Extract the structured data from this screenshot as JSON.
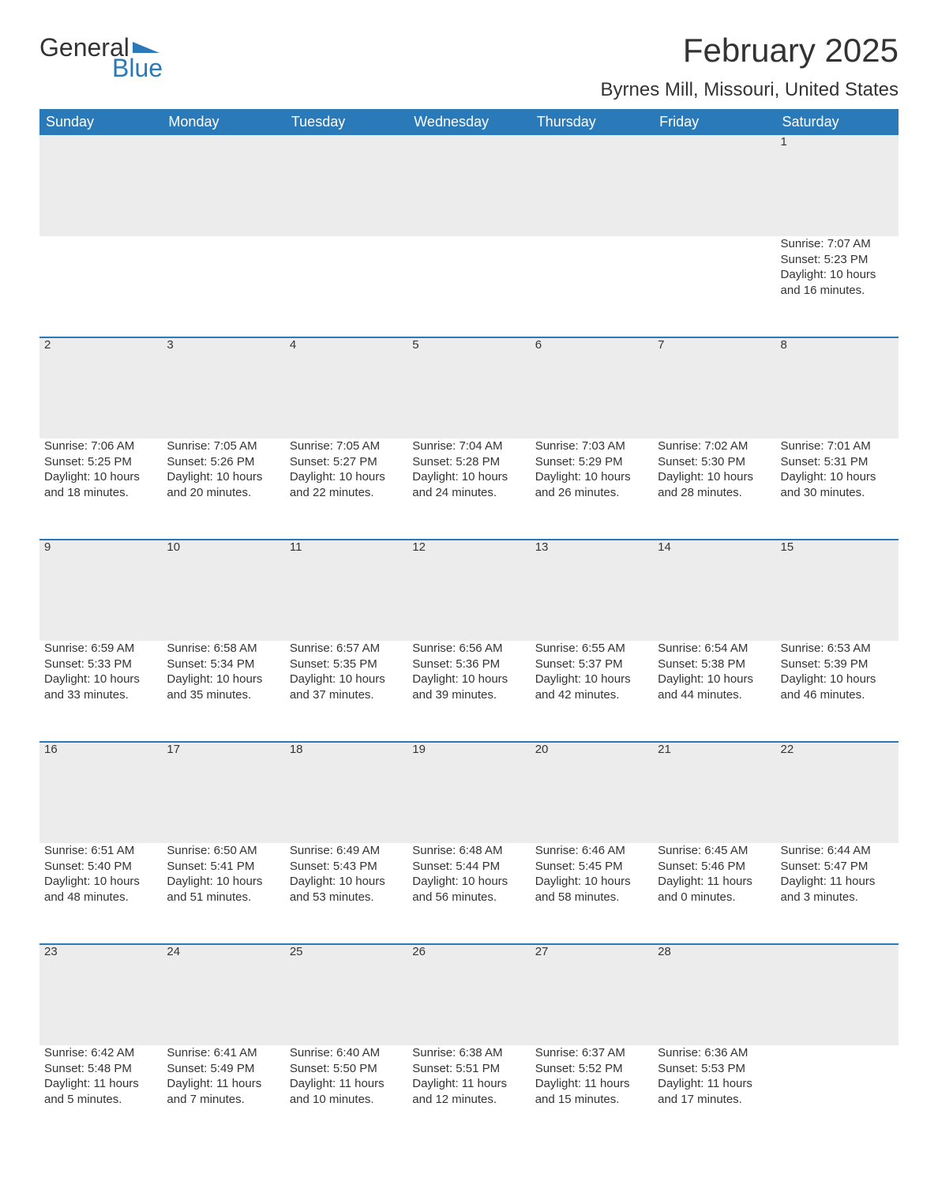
{
  "brand": {
    "text1": "General",
    "text2": "Blue",
    "color_accent": "#2a7ab9"
  },
  "title": "February 2025",
  "location": "Byrnes Mill, Missouri, United States",
  "colors": {
    "header_bg": "#2a7ab9",
    "header_text": "#ffffff",
    "daynum_bg": "#ececec",
    "row_divider": "#2a7ab9",
    "text": "#333333",
    "background": "#ffffff"
  },
  "weekdays": [
    "Sunday",
    "Monday",
    "Tuesday",
    "Wednesday",
    "Thursday",
    "Friday",
    "Saturday"
  ],
  "weeks": [
    [
      null,
      null,
      null,
      null,
      null,
      null,
      {
        "day": "1",
        "sunrise": "7:07 AM",
        "sunset": "5:23 PM",
        "daylight": "10 hours and 16 minutes."
      }
    ],
    [
      {
        "day": "2",
        "sunrise": "7:06 AM",
        "sunset": "5:25 PM",
        "daylight": "10 hours and 18 minutes."
      },
      {
        "day": "3",
        "sunrise": "7:05 AM",
        "sunset": "5:26 PM",
        "daylight": "10 hours and 20 minutes."
      },
      {
        "day": "4",
        "sunrise": "7:05 AM",
        "sunset": "5:27 PM",
        "daylight": "10 hours and 22 minutes."
      },
      {
        "day": "5",
        "sunrise": "7:04 AM",
        "sunset": "5:28 PM",
        "daylight": "10 hours and 24 minutes."
      },
      {
        "day": "6",
        "sunrise": "7:03 AM",
        "sunset": "5:29 PM",
        "daylight": "10 hours and 26 minutes."
      },
      {
        "day": "7",
        "sunrise": "7:02 AM",
        "sunset": "5:30 PM",
        "daylight": "10 hours and 28 minutes."
      },
      {
        "day": "8",
        "sunrise": "7:01 AM",
        "sunset": "5:31 PM",
        "daylight": "10 hours and 30 minutes."
      }
    ],
    [
      {
        "day": "9",
        "sunrise": "6:59 AM",
        "sunset": "5:33 PM",
        "daylight": "10 hours and 33 minutes."
      },
      {
        "day": "10",
        "sunrise": "6:58 AM",
        "sunset": "5:34 PM",
        "daylight": "10 hours and 35 minutes."
      },
      {
        "day": "11",
        "sunrise": "6:57 AM",
        "sunset": "5:35 PM",
        "daylight": "10 hours and 37 minutes."
      },
      {
        "day": "12",
        "sunrise": "6:56 AM",
        "sunset": "5:36 PM",
        "daylight": "10 hours and 39 minutes."
      },
      {
        "day": "13",
        "sunrise": "6:55 AM",
        "sunset": "5:37 PM",
        "daylight": "10 hours and 42 minutes."
      },
      {
        "day": "14",
        "sunrise": "6:54 AM",
        "sunset": "5:38 PM",
        "daylight": "10 hours and 44 minutes."
      },
      {
        "day": "15",
        "sunrise": "6:53 AM",
        "sunset": "5:39 PM",
        "daylight": "10 hours and 46 minutes."
      }
    ],
    [
      {
        "day": "16",
        "sunrise": "6:51 AM",
        "sunset": "5:40 PM",
        "daylight": "10 hours and 48 minutes."
      },
      {
        "day": "17",
        "sunrise": "6:50 AM",
        "sunset": "5:41 PM",
        "daylight": "10 hours and 51 minutes."
      },
      {
        "day": "18",
        "sunrise": "6:49 AM",
        "sunset": "5:43 PM",
        "daylight": "10 hours and 53 minutes."
      },
      {
        "day": "19",
        "sunrise": "6:48 AM",
        "sunset": "5:44 PM",
        "daylight": "10 hours and 56 minutes."
      },
      {
        "day": "20",
        "sunrise": "6:46 AM",
        "sunset": "5:45 PM",
        "daylight": "10 hours and 58 minutes."
      },
      {
        "day": "21",
        "sunrise": "6:45 AM",
        "sunset": "5:46 PM",
        "daylight": "11 hours and 0 minutes."
      },
      {
        "day": "22",
        "sunrise": "6:44 AM",
        "sunset": "5:47 PM",
        "daylight": "11 hours and 3 minutes."
      }
    ],
    [
      {
        "day": "23",
        "sunrise": "6:42 AM",
        "sunset": "5:48 PM",
        "daylight": "11 hours and 5 minutes."
      },
      {
        "day": "24",
        "sunrise": "6:41 AM",
        "sunset": "5:49 PM",
        "daylight": "11 hours and 7 minutes."
      },
      {
        "day": "25",
        "sunrise": "6:40 AM",
        "sunset": "5:50 PM",
        "daylight": "11 hours and 10 minutes."
      },
      {
        "day": "26",
        "sunrise": "6:38 AM",
        "sunset": "5:51 PM",
        "daylight": "11 hours and 12 minutes."
      },
      {
        "day": "27",
        "sunrise": "6:37 AM",
        "sunset": "5:52 PM",
        "daylight": "11 hours and 15 minutes."
      },
      {
        "day": "28",
        "sunrise": "6:36 AM",
        "sunset": "5:53 PM",
        "daylight": "11 hours and 17 minutes."
      },
      null
    ]
  ],
  "labels": {
    "sunrise": "Sunrise: ",
    "sunset": "Sunset: ",
    "daylight": "Daylight: "
  }
}
